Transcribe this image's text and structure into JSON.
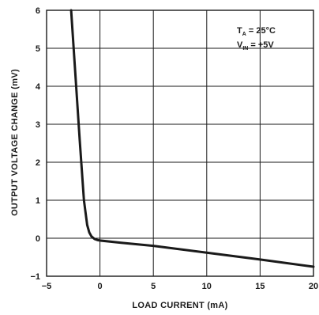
{
  "chart_data": {
    "type": "line",
    "xlabel": "LOAD CURRENT (mA)",
    "ylabel": "OUTPUT VOLTAGE CHANGE (mV)",
    "xlim": [
      -5,
      20
    ],
    "ylim": [
      -1,
      6
    ],
    "xticks": [
      "−5",
      "0",
      "5",
      "10",
      "15",
      "20"
    ],
    "yticks": [
      "−1",
      "0",
      "1",
      "2",
      "3",
      "4",
      "5",
      "6"
    ],
    "grid": true,
    "annotations": {
      "ta_main": "T",
      "ta_sub": "A",
      "ta_value": " = 25°C",
      "vin_main": "V",
      "vin_sub": "IN",
      "vin_value": " = +5V"
    },
    "series": [
      {
        "x": [
          -2.7,
          -2.3,
          -1.9,
          -1.5,
          -1.2,
          -1.0,
          -0.8,
          -0.5,
          -0.2,
          0,
          2,
          5,
          10,
          15,
          20
        ],
        "y": [
          6.0,
          4.3,
          2.6,
          1.0,
          0.35,
          0.15,
          0.05,
          -0.02,
          -0.05,
          -0.06,
          -0.12,
          -0.2,
          -0.38,
          -0.56,
          -0.75
        ]
      }
    ],
    "colors": {
      "line": "#1a1a1a",
      "grid": "#1a1a1a",
      "frame": "#1a1a1a"
    }
  }
}
